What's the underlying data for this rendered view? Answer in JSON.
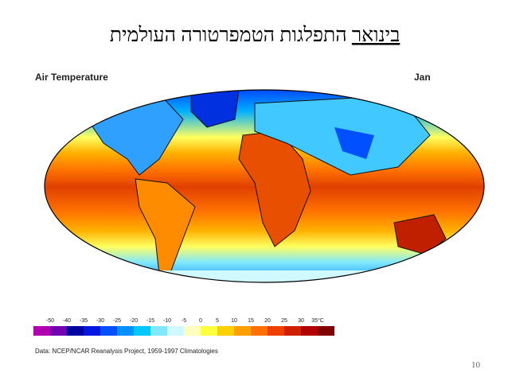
{
  "header": {
    "title": "התפלגות הטמפרטורה העולמית",
    "title_underlined": "בינואר"
  },
  "map": {
    "title": "Air Temperature",
    "month": "Jan",
    "legend": {
      "labels": [
        "-50",
        "-40",
        "-35",
        "-30",
        "-25",
        "-20",
        "-15",
        "-10",
        "-5",
        "0",
        "5",
        "10",
        "15",
        "20",
        "25",
        "30",
        "35°C"
      ],
      "colors": [
        "#b000b0",
        "#7000b0",
        "#0000a0",
        "#0018e0",
        "#0050ff",
        "#0090ff",
        "#00c8ff",
        "#80e8ff",
        "#d0f8ff",
        "#ffffc0",
        "#ffff40",
        "#ffd000",
        "#ffa000",
        "#ff7000",
        "#f04000",
        "#d02000",
        "#b00000",
        "#800000"
      ]
    },
    "source": "Data: NCEP/NCAR Reanalysis Project, 1959-1997 Climatologies"
  },
  "footer": {
    "page_number": "10"
  }
}
